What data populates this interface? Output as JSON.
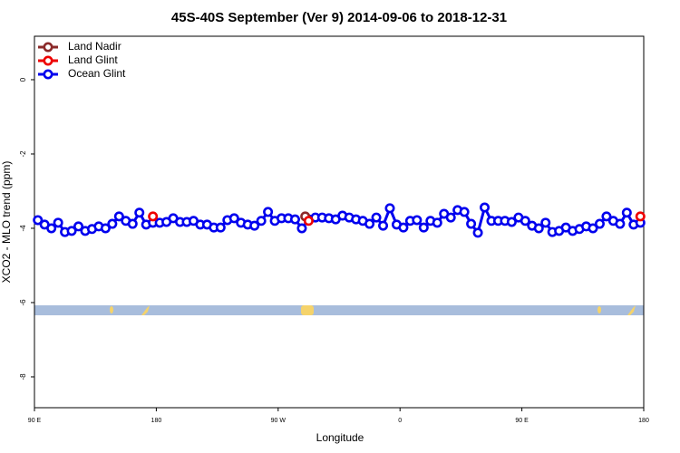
{
  "chart_data": {
    "type": "line",
    "title": "45S-40S September (Ver 9)   2014-09-06 to 2018-12-31",
    "xlabel": "Longitude",
    "ylabel": "XCO2 - MLO trend (ppm)",
    "xlim": [
      90,
      540
    ],
    "xticks": [
      {
        "value": 90,
        "label": "90 E"
      },
      {
        "value": 180,
        "label": "180"
      },
      {
        "value": 270,
        "label": "90 W"
      },
      {
        "value": 360,
        "label": "0"
      },
      {
        "value": 450,
        "label": "90 E"
      },
      {
        "value": 540,
        "label": "180"
      }
    ],
    "ylim": [
      -8.83,
      1.17
    ],
    "yticks": [
      0,
      -2,
      -4,
      -6,
      -8
    ],
    "legend": "top-left",
    "series": [
      {
        "name": "Land Nadir",
        "color": "#8b2a2a",
        "x": [
          290
        ],
        "values": [
          -3.68
        ]
      },
      {
        "name": "Land Glint",
        "color": "#ee0000",
        "x": [
          177.5,
          292.5,
          537.5
        ],
        "values": [
          -3.68,
          -3.8,
          -3.68
        ]
      },
      {
        "name": "Ocean Glint",
        "color": "#0000ee",
        "x": [
          92.5,
          97.5,
          102.5,
          107.5,
          112.5,
          117.5,
          122.5,
          127.5,
          132.5,
          137.5,
          142.5,
          147.5,
          152.5,
          157.5,
          162.5,
          167.5,
          172.5,
          177.5,
          182.5,
          187.5,
          192.5,
          197.5,
          202.5,
          207.5,
          212.5,
          217.5,
          222.5,
          227.5,
          232.5,
          237.5,
          242.5,
          247.5,
          252.5,
          257.5,
          262.5,
          267.5,
          272.5,
          277.5,
          282.5,
          287.5,
          292.5,
          297.5,
          302.5,
          307.5,
          312.5,
          317.5,
          322.5,
          327.5,
          332.5,
          337.5,
          342.5,
          347.5,
          352.5,
          357.5,
          362.5,
          367.5,
          372.5,
          377.5,
          382.5,
          387.5,
          392.5,
          397.5,
          402.5,
          407.5,
          412.5,
          417.5,
          422.5,
          427.5,
          432.5,
          437.5,
          442.5,
          447.5,
          452.5,
          457.5,
          462.5,
          467.5,
          472.5,
          477.5,
          482.5,
          487.5,
          492.5,
          497.5,
          502.5,
          507.5,
          512.5,
          517.5,
          522.5,
          527.5,
          532.5,
          537.5
        ],
        "values": [
          -3.78,
          -3.9,
          -4.0,
          -3.85,
          -4.1,
          -4.07,
          -3.95,
          -4.07,
          -4.02,
          -3.95,
          -4.0,
          -3.88,
          -3.68,
          -3.8,
          -3.88,
          -3.58,
          -3.9,
          -3.85,
          -3.85,
          -3.83,
          -3.73,
          -3.83,
          -3.83,
          -3.8,
          -3.9,
          -3.9,
          -3.98,
          -3.98,
          -3.78,
          -3.73,
          -3.85,
          -3.9,
          -3.93,
          -3.8,
          -3.56,
          -3.8,
          -3.73,
          -3.73,
          -3.76,
          -4.0,
          -3.76,
          -3.71,
          -3.71,
          -3.73,
          -3.76,
          -3.66,
          -3.71,
          -3.76,
          -3.8,
          -3.88,
          -3.71,
          -3.93,
          -3.46,
          -3.9,
          -3.98,
          -3.8,
          -3.78,
          -3.98,
          -3.8,
          -3.85,
          -3.61,
          -3.71,
          -3.51,
          -3.56,
          -3.88,
          -4.12,
          -3.44,
          -3.8,
          -3.8,
          -3.8,
          -3.83,
          -3.71,
          -3.8,
          -3.93,
          -4.0,
          -3.85,
          -4.1,
          -4.07,
          -3.98,
          -4.07,
          -4.02,
          -3.95,
          -4.0,
          -3.88,
          -3.68,
          -3.8,
          -3.88,
          -3.58,
          -3.9,
          -3.85
        ]
      }
    ]
  }
}
